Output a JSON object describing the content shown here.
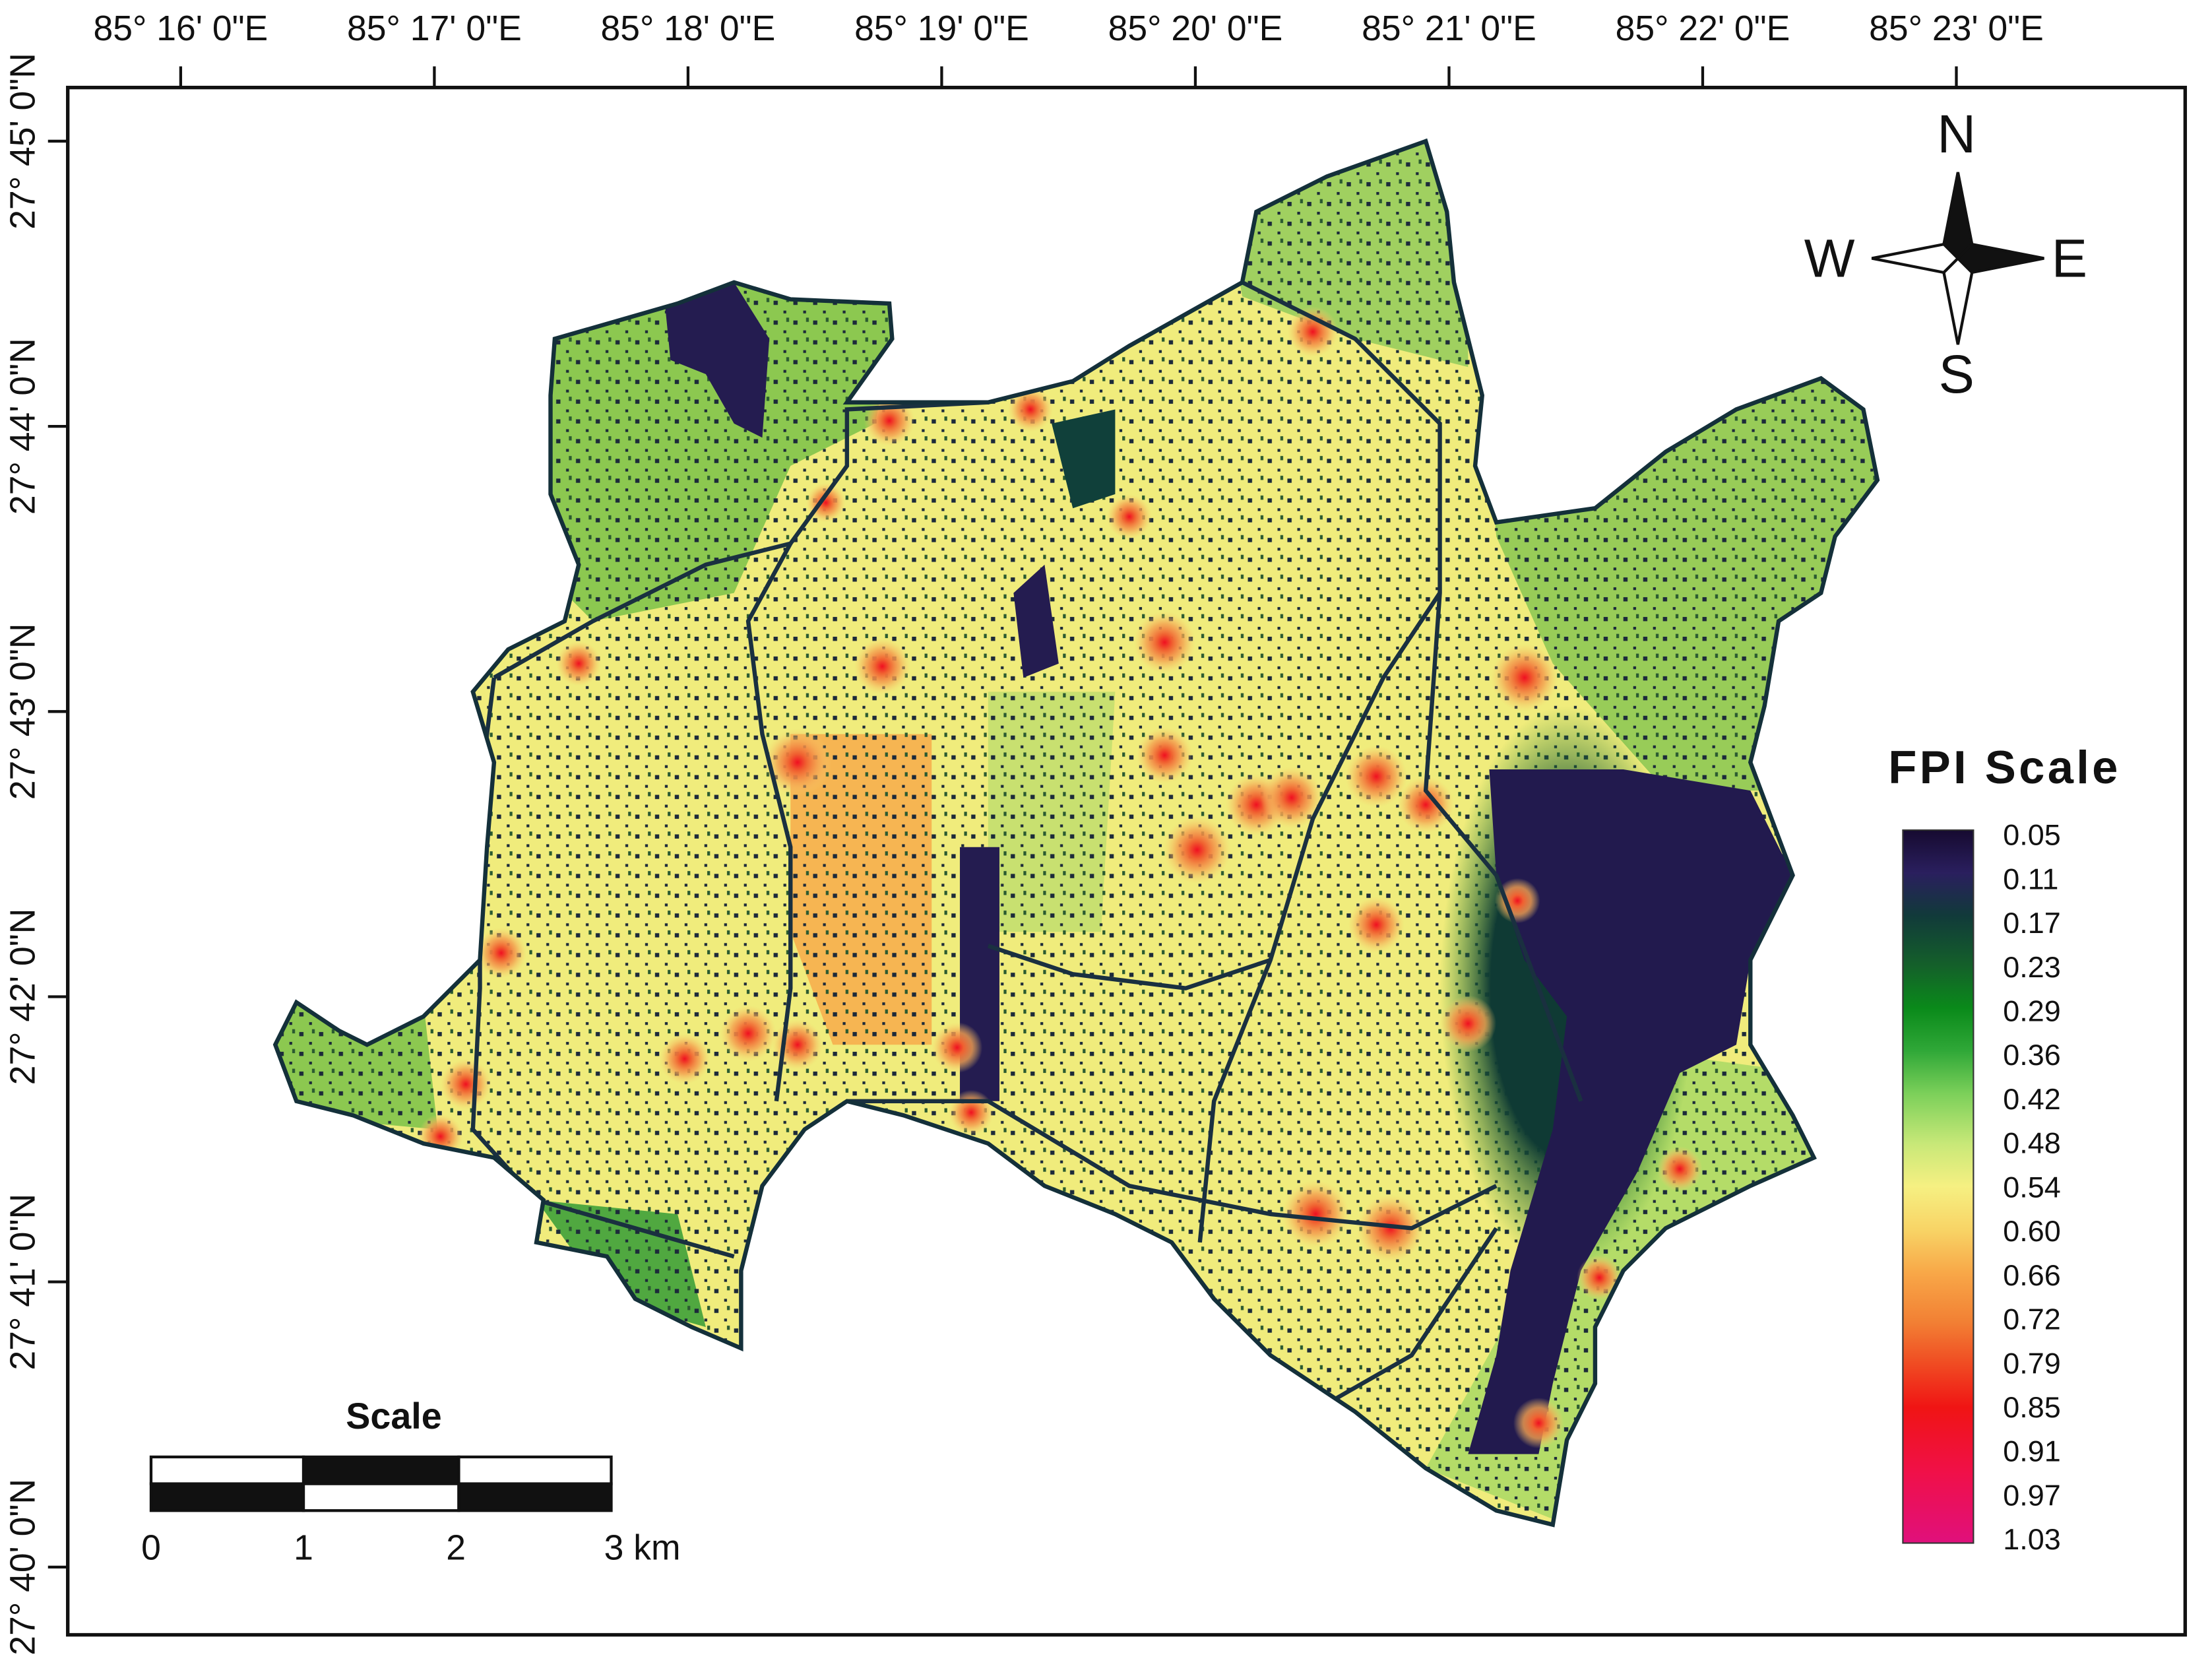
{
  "map": {
    "longitude_labels": [
      "85° 16' 0\"E",
      "85° 17' 0\"E",
      "85° 18' 0\"E",
      "85° 19' 0\"E",
      "85° 20' 0\"E",
      "85° 21' 0\"E",
      "85° 22' 0\"E",
      "85° 23' 0\"E"
    ],
    "latitude_labels": [
      "27° 45' 0\"N",
      "27° 44' 0\"N",
      "27° 43' 0\"N",
      "27° 42' 0\"N",
      "27° 41' 0\"N",
      "27° 40' 0\"N"
    ],
    "compass": {
      "north": "N",
      "west": "W",
      "east": "E",
      "south": "S"
    },
    "scale_bar": {
      "title": "Scale",
      "labels": [
        "0",
        "1",
        "2",
        "3 km"
      ]
    },
    "legend": {
      "title": "FPI Scale",
      "labels": [
        "0.05",
        "0.11",
        "0.17",
        "0.23",
        "0.29",
        "0.36",
        "0.42",
        "0.48",
        "0.54",
        "0.60",
        "0.66",
        "0.72",
        "0.79",
        "0.85",
        "0.91",
        "0.97",
        "1.03"
      ]
    }
  }
}
